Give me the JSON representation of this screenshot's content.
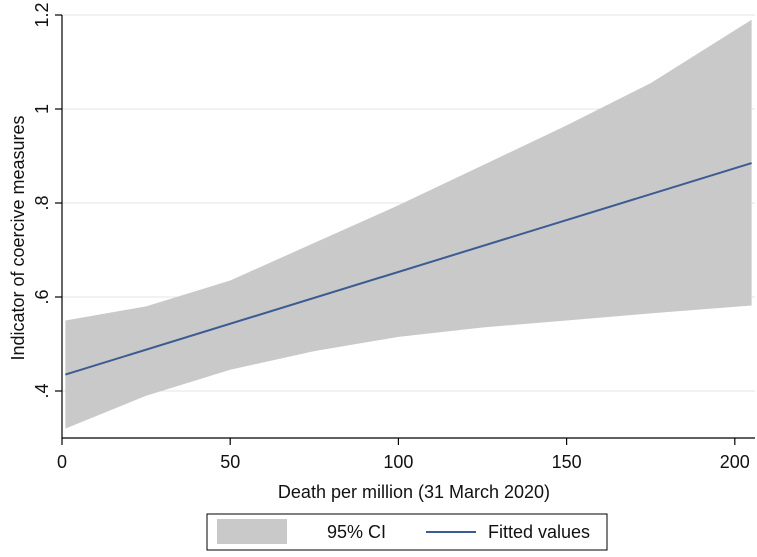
{
  "chart_data": {
    "type": "line",
    "title": "",
    "xlabel": "Death per million (31 March 2020)",
    "ylabel": "Indicator of coercive measures",
    "xlim": [
      0,
      206
    ],
    "ylim": [
      0.3,
      1.2
    ],
    "x_ticks": [
      0,
      50,
      100,
      150,
      200
    ],
    "x_tick_labels": [
      "0",
      "50",
      "100",
      "150",
      "200"
    ],
    "y_ticks": [
      0.4,
      0.6,
      0.8,
      1.0,
      1.2
    ],
    "y_tick_labels": [
      ".4",
      ".6",
      ".8",
      "1",
      "1.2"
    ],
    "grid": true,
    "legend_position": "bottom",
    "fitted_values": {
      "name": "Fitted values",
      "color": "#3b5b92",
      "x": [
        1,
        205
      ],
      "y": [
        0.435,
        0.885
      ]
    },
    "confidence_band": {
      "name": "95% CI",
      "color": "#c9c9c9",
      "x": [
        1,
        25,
        50,
        75,
        100,
        125,
        150,
        175,
        205
      ],
      "lower": [
        0.32,
        0.39,
        0.445,
        0.485,
        0.515,
        0.535,
        0.55,
        0.565,
        0.582
      ],
      "upper": [
        0.55,
        0.58,
        0.635,
        0.715,
        0.795,
        0.88,
        0.965,
        1.055,
        1.19
      ]
    }
  }
}
